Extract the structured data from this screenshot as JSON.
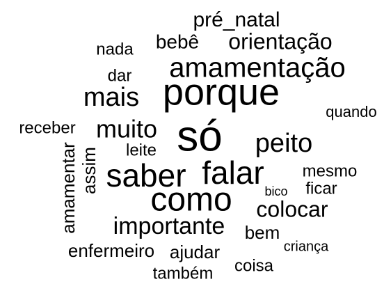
{
  "chart_data": {
    "type": "wordcloud",
    "color": "#000000",
    "words": [
      "pré_natal",
      "nada",
      "bebê",
      "orientação",
      "amamentação",
      "dar",
      "mais",
      "porque",
      "quando",
      "receber",
      "muito",
      "só",
      "peito",
      "leite",
      "amamentar",
      "assim",
      "saber",
      "falar",
      "mesmo",
      "bico",
      "ficar",
      "como",
      "colocar",
      "importante",
      "bem",
      "criança",
      "enfermeiro",
      "ajudar",
      "coisa",
      "também"
    ]
  }
}
